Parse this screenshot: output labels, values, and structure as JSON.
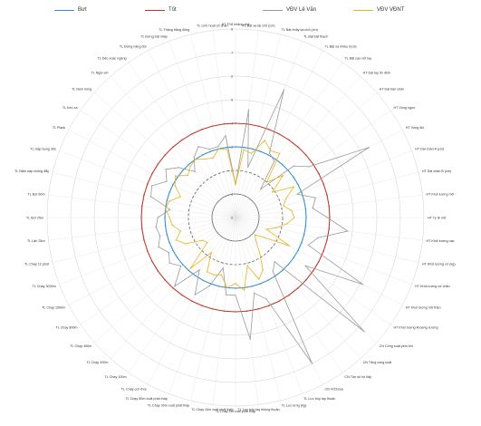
{
  "chart_data": {
    "type": "radar",
    "rings": 8,
    "ring_ticks": [
      "8",
      "7",
      "6",
      "5",
      "4",
      "3",
      "2",
      "1",
      "0"
    ],
    "axes": [
      "HT Tỉ lệ kháng chế",
      "TL Bật xa tại chỗ (cm)",
      "TL Bật nhảy tại chỗ (cm)",
      "TL Bật bật thạch",
      "TL Bật xa nhiều bước",
      "TL Bật cao với tay",
      "HT Dài tay ổn định",
      "HT Dài bàn chân",
      "HT Vòng ngực",
      "HT Vòng đùi",
      "HT Dài chân A (cm)",
      "HT Dài chân B (cm)",
      "HT Khối lượng mỡ",
      "HT Tỷ lệ mỡ",
      "HT Khối lượng nạc",
      "HT Khối lượng cơ (kg)",
      "HT Khối lượng cơ chân",
      "HT Khối lượng mỡ thân",
      "HT Khối lượng khoáng xương",
      "CN Công suất yếm khí",
      "CN Tổng công suất",
      "CN Tần số hô hấp",
      "CN VO2max",
      "TL Lực bóp tay thuận",
      "TL Lực lưng (kg)",
      "TL Lực bóp tay không thuận",
      "TL Chạy 5m xuất phát thấp",
      "TL Chạy 10m xuất phát thấp",
      "TL Chạy 30m xuất phát thấp",
      "TL Chạy 60m xuất phát thấp",
      "TL Chạy con thoi",
      "TL Chạy 100m",
      "TL Chạy 200m",
      "TL Chạy 400m",
      "TL Chạy 800m",
      "TL Chạy 1500m",
      "TL Chạy 3000m",
      "TL Chạy 12 phút",
      "TL Lặn 25m",
      "TL Bơi 25m",
      "TL Bơi 50m",
      "TL Nằm sấp chống đẩy",
      "TL Gập bụng 30s",
      "TL Plank",
      "TL Kéo xà",
      "TL Ném bóng",
      "TL Ngồi với",
      "TL Dẻo xoạc ngang",
      "TL Đứng nâng đùi",
      "TL Đứng bật nhảy",
      "TL Thăng bằng động",
      "TL Linh hoạt cổ chân"
    ],
    "series": [
      {
        "name": "Bưt",
        "color": "#3a8fcf",
        "dashed": false,
        "values": [
          3,
          3,
          3,
          3,
          3,
          3,
          3,
          3,
          3,
          3,
          3,
          3,
          3,
          3,
          3,
          3,
          3,
          3,
          3,
          3,
          3,
          3,
          3,
          3,
          3,
          3,
          3,
          3,
          3,
          3,
          3,
          3,
          3,
          3,
          3,
          3,
          3,
          3,
          3,
          3,
          3,
          3,
          3,
          3,
          3,
          3,
          3,
          3,
          3,
          3,
          3,
          3
        ]
      },
      {
        "name": "Tốt",
        "color": "#c0392b",
        "dashed": false,
        "values": [
          4,
          4,
          4,
          4,
          4,
          4,
          4,
          4,
          4,
          4,
          4,
          4,
          4,
          4,
          4,
          4,
          4,
          4,
          4,
          4,
          4,
          4,
          4,
          4,
          4,
          4,
          4,
          4,
          4,
          4,
          4,
          4,
          4,
          4,
          4,
          4,
          4,
          4,
          4,
          4,
          4,
          4,
          4,
          4,
          4,
          4,
          4,
          4,
          4,
          4,
          4,
          4
        ]
      },
      {
        "name": "VĐV Lê Văn",
        "color": "#9a9a9a",
        "dashed": false,
        "values": [
          1.4,
          4.6,
          2.2,
          5.8,
          3.1,
          2.9,
          1.6,
          3.3,
          3.8,
          6.4,
          2.8,
          3.5,
          3.3,
          3.9,
          4.8,
          3.6,
          3.3,
          6.1,
          3.6,
          7.3,
          2.5,
          2.8,
          7.0,
          3.7,
          3.3,
          5.2,
          3.3,
          3.3,
          2.2,
          3.1,
          3.7,
          2.7,
          3.9,
          3.1,
          3.4,
          3.2,
          3.5,
          3.3,
          3.4,
          3.3,
          2.8,
          3.7,
          3.8,
          3.3,
          3.6,
          3.2,
          2.6,
          3.1,
          3.4,
          3.1,
          3.1,
          3.5
        ]
      },
      {
        "name": "VĐV VĐNT",
        "color": "#e8b21c",
        "dashed": false,
        "values": [
          1.4,
          2.9,
          2.8,
          3.5,
          3.2,
          3.3,
          2.0,
          2.7,
          1.9,
          2.8,
          2.3,
          2.1,
          2.4,
          2.5,
          2.2,
          1.8,
          1.4,
          2.6,
          1.5,
          1.1,
          1.3,
          1.8,
          2.5,
          2.8,
          2.1,
          3.1,
          2.8,
          3.0,
          2.5,
          2.6,
          2.6,
          1.8,
          2.9,
          1.6,
          1.7,
          2.4,
          2.7,
          2.4,
          2.7,
          2.8,
          3.0,
          2.9,
          2.5,
          2.9,
          3.1,
          2.7,
          2.9,
          3.0,
          2.8,
          2.7,
          3.0,
          2.9
        ]
      }
    ],
    "title": "",
    "legend_position": "top"
  }
}
